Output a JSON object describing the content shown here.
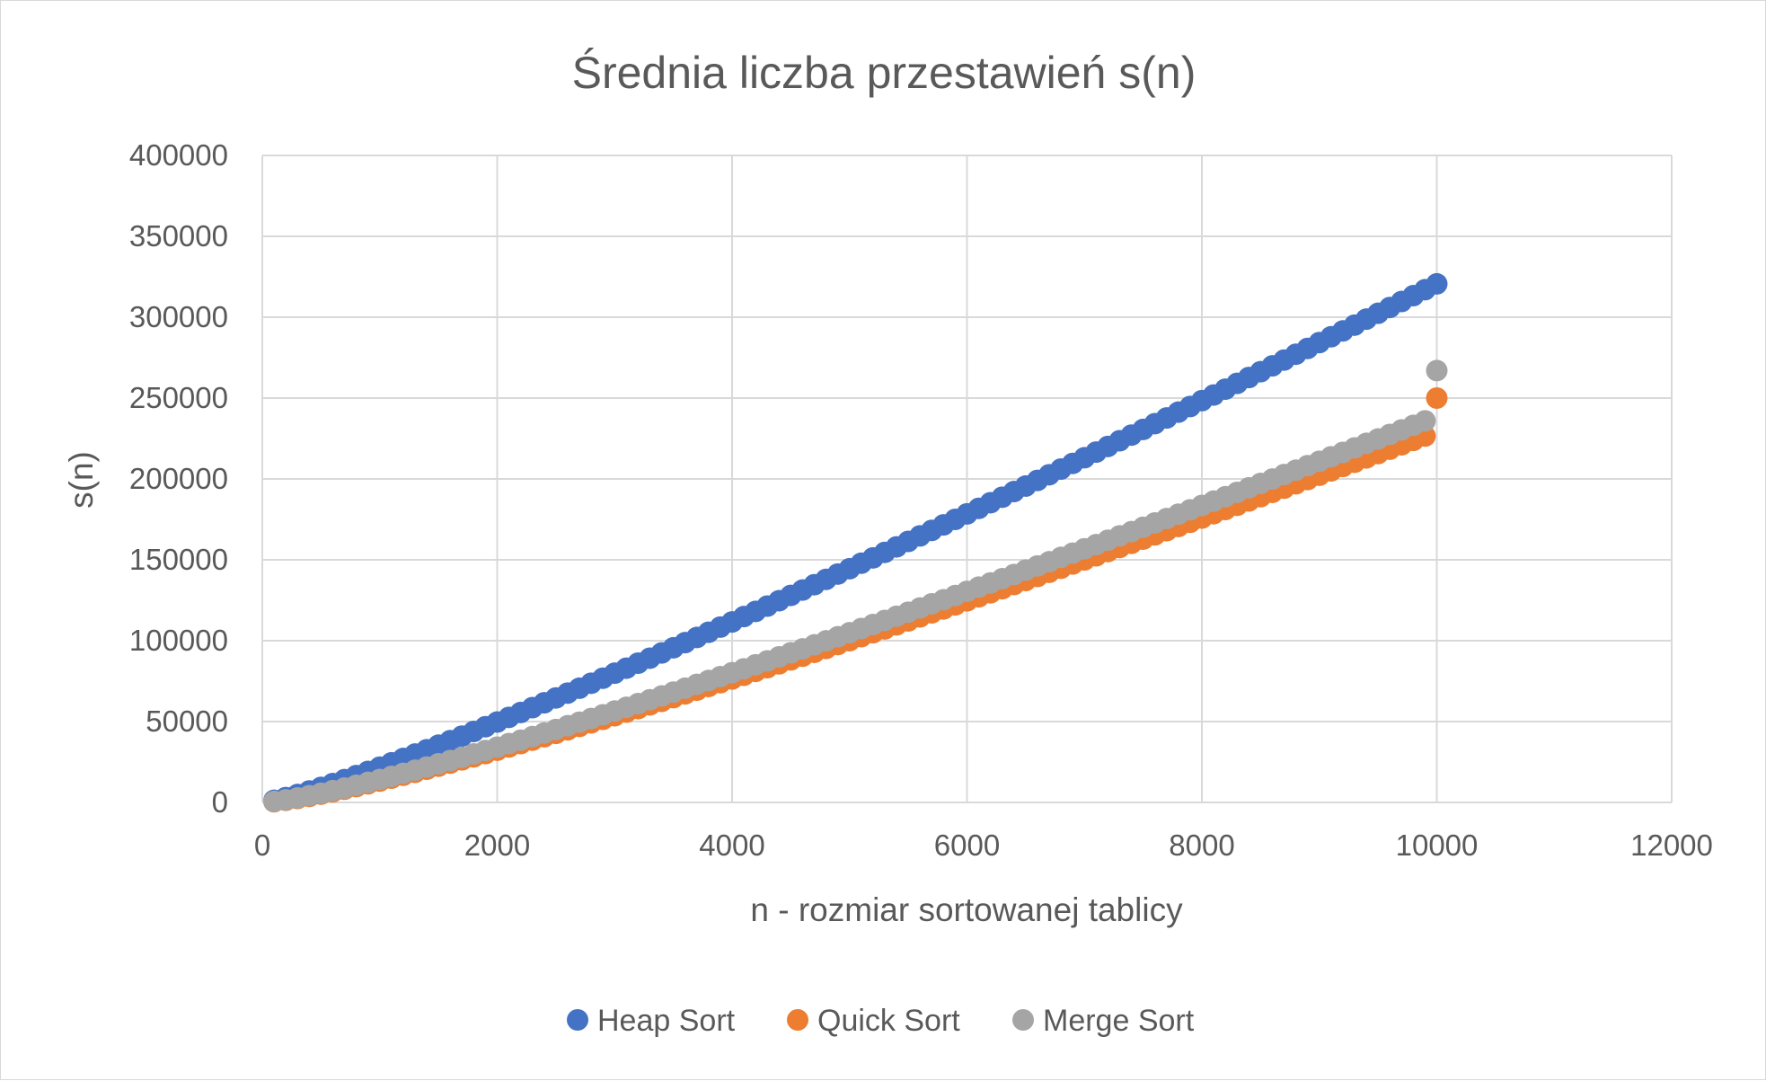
{
  "chart_data": {
    "type": "scatter",
    "title": "Średnia liczba przestawień s(n)",
    "xlabel": "n - rozmiar sortowanej tablicy",
    "ylabel": "s(n)",
    "xlim": [
      0,
      12000
    ],
    "ylim": [
      0,
      400000
    ],
    "x_ticks": [
      0,
      2000,
      4000,
      6000,
      8000,
      10000,
      12000
    ],
    "y_ticks": [
      0,
      50000,
      100000,
      150000,
      200000,
      250000,
      300000,
      350000,
      400000
    ],
    "x_tick_labels": [
      "0",
      "2000",
      "4000",
      "6000",
      "8000",
      "10000",
      "12000"
    ],
    "y_tick_labels": [
      "0",
      "50000",
      "100000",
      "150000",
      "200000",
      "250000",
      "300000",
      "350000",
      "400000"
    ],
    "grid": true,
    "legend_position": "bottom",
    "x": [
      100,
      200,
      300,
      400,
      500,
      600,
      700,
      800,
      900,
      1000,
      1100,
      1200,
      1300,
      1400,
      1500,
      1600,
      1700,
      1800,
      1900,
      2000,
      2100,
      2200,
      2300,
      2400,
      2500,
      2600,
      2700,
      2800,
      2900,
      3000,
      3100,
      3200,
      3300,
      3400,
      3500,
      3600,
      3700,
      3800,
      3900,
      4000,
      4100,
      4200,
      4300,
      4400,
      4500,
      4600,
      4700,
      4800,
      4900,
      5000,
      5100,
      5200,
      5300,
      5400,
      5500,
      5600,
      5700,
      5800,
      5900,
      6000,
      6100,
      6200,
      6300,
      6400,
      6500,
      6600,
      6700,
      6800,
      6900,
      7000,
      7100,
      7200,
      7300,
      7400,
      7500,
      7600,
      7700,
      7800,
      7900,
      8000,
      8100,
      8200,
      8300,
      8400,
      8500,
      8600,
      8700,
      8800,
      8900,
      9000,
      9100,
      9200,
      9300,
      9400,
      9500,
      9600,
      9700,
      9800,
      9900,
      10000
    ],
    "series": [
      {
        "name": "Heap Sort",
        "color": "#4472c4",
        "values": [
          1300,
          3000,
          4900,
          7100,
          9300,
          11700,
          14100,
          16600,
          19200,
          21800,
          24500,
          27200,
          29900,
          32600,
          35400,
          38200,
          41000,
          43900,
          46800,
          49700,
          52600,
          55600,
          58600,
          61600,
          64600,
          67600,
          70600,
          73700,
          76800,
          79900,
          83000,
          86100,
          89200,
          92400,
          95600,
          98800,
          102000,
          105200,
          108400,
          111600,
          114900,
          118100,
          121400,
          124700,
          128000,
          131300,
          134600,
          137900,
          141200,
          144500,
          147900,
          151200,
          154600,
          158000,
          161400,
          164800,
          168200,
          171600,
          175000,
          178400,
          181800,
          185300,
          188700,
          192200,
          195600,
          199100,
          202600,
          206100,
          209600,
          213100,
          216600,
          220100,
          223600,
          227100,
          230600,
          234200,
          237700,
          241300,
          244800,
          248400,
          251900,
          255500,
          259100,
          262700,
          266300,
          269900,
          273500,
          277100,
          280700,
          284300,
          287900,
          291500,
          295100,
          298800,
          302400,
          306000,
          309700,
          313300,
          317000,
          320600
        ]
      },
      {
        "name": "Quick Sort",
        "color": "#ed7d31",
        "values": [
          400,
          1300,
          2400,
          3700,
          5100,
          6600,
          8200,
          9800,
          11500,
          13200,
          15000,
          16800,
          18600,
          20500,
          22400,
          24300,
          26300,
          28200,
          30200,
          32300,
          34300,
          36400,
          38500,
          40600,
          42700,
          44900,
          47000,
          49200,
          51400,
          53600,
          55800,
          58000,
          60300,
          62500,
          64800,
          67100,
          69400,
          71700,
          74000,
          76300,
          78600,
          81000,
          83300,
          85700,
          88100,
          90400,
          92800,
          95200,
          97600,
          100000,
          102500,
          104900,
          107300,
          109800,
          112200,
          114700,
          117200,
          119600,
          122100,
          124600,
          127100,
          129600,
          132100,
          134700,
          137200,
          139700,
          142300,
          144800,
          147400,
          149900,
          152500,
          155100,
          157600,
          160200,
          162800,
          165400,
          168000,
          170600,
          173200,
          175800,
          178500,
          181100,
          183700,
          186400,
          189000,
          191700,
          194300,
          197000,
          199600,
          202300,
          205000,
          207700,
          210300,
          213000,
          215700,
          218400,
          221100,
          223800,
          226500,
          250000
        ]
      },
      {
        "name": "Merge Sort",
        "color": "#a5a5a5",
        "values": [
          600,
          1600,
          2800,
          4200,
          5700,
          7300,
          8900,
          10600,
          12400,
          14200,
          16100,
          18000,
          19900,
          21900,
          23900,
          25900,
          27900,
          30000,
          32100,
          34200,
          36400,
          38500,
          40700,
          42900,
          45100,
          47400,
          49600,
          51900,
          54200,
          56500,
          58800,
          61100,
          63500,
          65800,
          68200,
          70600,
          73000,
          75400,
          77800,
          80200,
          82600,
          85100,
          87500,
          90000,
          92500,
          94900,
          97400,
          99900,
          102400,
          104900,
          107500,
          110000,
          112500,
          115100,
          117600,
          120200,
          122800,
          125300,
          127900,
          130500,
          133100,
          135700,
          138300,
          140900,
          143600,
          146200,
          148800,
          151500,
          154100,
          156800,
          159400,
          162100,
          164800,
          167400,
          170100,
          172800,
          175500,
          178200,
          180900,
          183600,
          186300,
          189000,
          191700,
          194500,
          197200,
          199900,
          202700,
          205400,
          208200,
          210900,
          213700,
          216400,
          219200,
          222000,
          224700,
          227500,
          230300,
          233100,
          235900,
          267000
        ]
      }
    ]
  }
}
